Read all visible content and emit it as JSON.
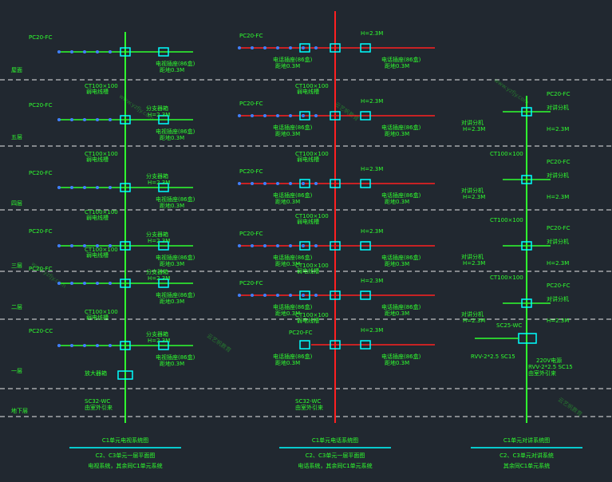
{
  "floors": [
    "屋面",
    "五层",
    "四层",
    "三层",
    "二层",
    "一层",
    "地下层"
  ],
  "labels": {
    "pipe": "PC20-FC",
    "pipe_cc": "PC20-CC",
    "tray": "CT100×100",
    "tray_note": "弱电线槽",
    "height": "H=2.3M",
    "floor_h": "距地0.3M",
    "outlet": "电视插座(86盒)",
    "phone": "电话插座(86盒)",
    "box": "分支器箱",
    "in_tv": "SC32-WC",
    "in_door": "SC25-WC",
    "cable": "RVV-2*2.5 SC15",
    "power": "220V电源",
    "intercom": "对讲分机",
    "amp": "放大器箱",
    "entry": "由室外引来"
  },
  "columns": [
    {
      "title": "C1单元电视系统图",
      "subtitle": "C2、C3单元一层平面图",
      "note": "电视系统，其余同C1单元系统"
    },
    {
      "title": "C1单元电话系统图",
      "subtitle": "C2、C3单元一层平面图",
      "note": "电话系统，其余同C1单元系统"
    },
    {
      "title": "C1单元对讲系统图",
      "subtitle": "C2、C3单元对讲系统",
      "note": "其余同C1单元系统"
    }
  ],
  "watermark": [
    "www.yzfjy.com",
    "云艺帆教育"
  ]
}
